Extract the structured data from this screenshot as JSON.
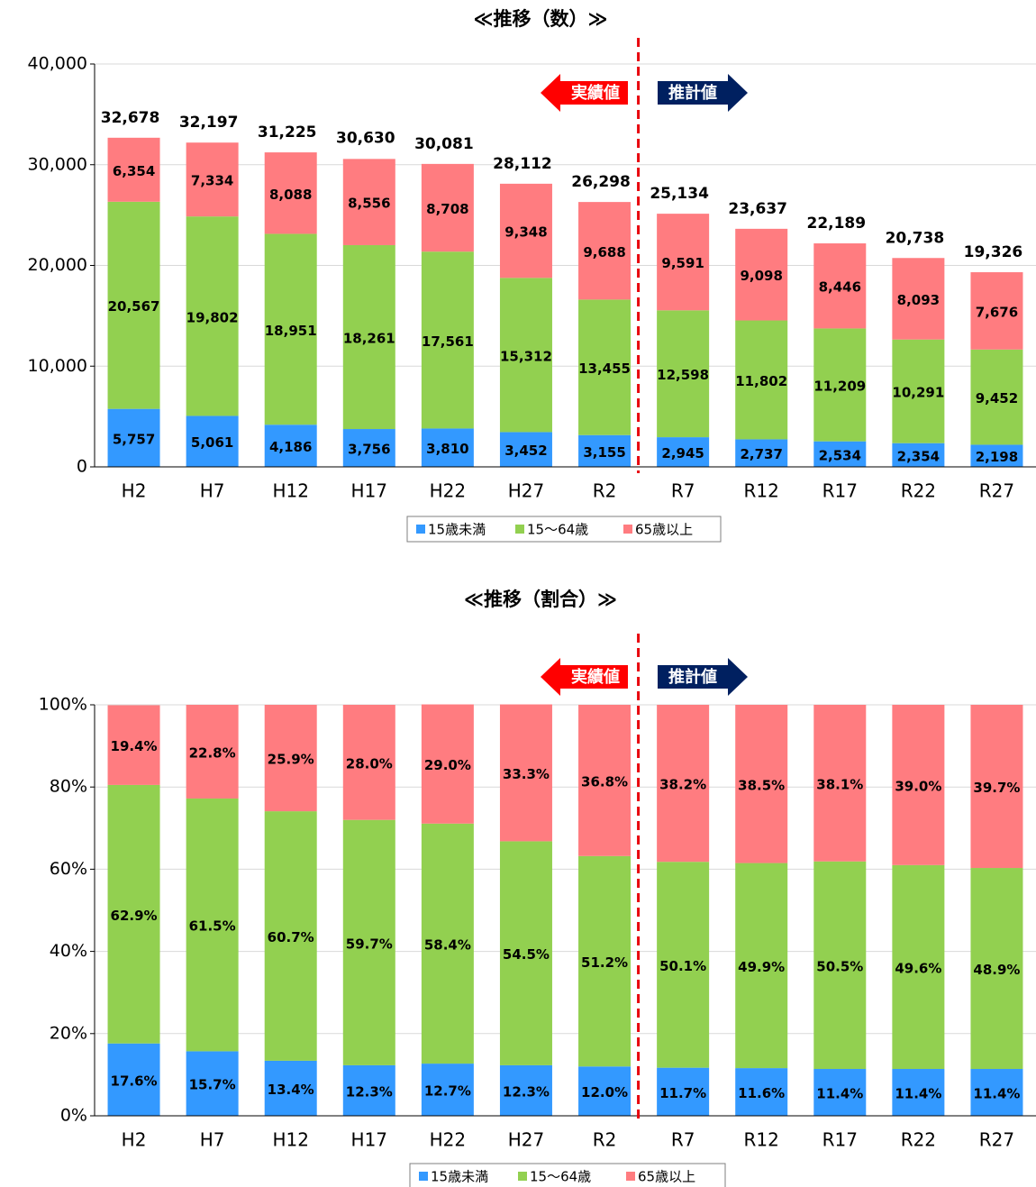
{
  "chart_data": [
    {
      "type": "bar",
      "stacked": true,
      "title": "≪推移（数）≫",
      "categories": [
        "H2",
        "H7",
        "H12",
        "H17",
        "H22",
        "H27",
        "R2",
        "R7",
        "R12",
        "R17",
        "R22",
        "R27"
      ],
      "series": [
        {
          "name": "15歳未満",
          "color": "#3399ff",
          "values": [
            5757,
            5061,
            4186,
            3756,
            3810,
            3452,
            3155,
            2945,
            2737,
            2534,
            2354,
            2198
          ],
          "value_labels": [
            "5,757",
            "5,061",
            "4,186",
            "3,756",
            "3,810",
            "3,452",
            "3,155",
            "2,945",
            "2,737",
            "2,534",
            "2,354",
            "2,198"
          ]
        },
        {
          "name": "15～64歳",
          "color": "#92d050",
          "values": [
            20567,
            19802,
            18951,
            18261,
            17561,
            15312,
            13455,
            12598,
            11802,
            11209,
            10291,
            9452
          ],
          "value_labels": [
            "20,567",
            "19,802",
            "18,951",
            "18,261",
            "17,561",
            "15,312",
            "13,455",
            "12,598",
            "11,802",
            "11,209",
            "10,291",
            "9,452"
          ]
        },
        {
          "name": "65歳以上",
          "color": "#ff7c80",
          "values": [
            6354,
            7334,
            8088,
            8556,
            8708,
            9348,
            9688,
            9591,
            9098,
            8446,
            8093,
            7676
          ],
          "value_labels": [
            "6,354",
            "7,334",
            "8,088",
            "8,556",
            "8,708",
            "9,348",
            "9,688",
            "9,591",
            "9,098",
            "8,446",
            "8,093",
            "7,676"
          ]
        }
      ],
      "totals": [
        32678,
        32197,
        31225,
        30630,
        30081,
        28112,
        26298,
        25134,
        23637,
        22189,
        20738,
        19326
      ],
      "total_labels": [
        "32,678",
        "32,197",
        "31,225",
        "30,630",
        "30,081",
        "28,112",
        "26,298",
        "25,134",
        "23,637",
        "22,189",
        "20,738",
        "19,326"
      ],
      "annotations": [
        "実績値",
        "推計値"
      ],
      "ylim": [
        0,
        40000
      ],
      "yticks": [
        0,
        {
          "value": 10000,
          "label": "10,000"
        },
        {
          "value": 20000,
          "label": "20,000"
        },
        {
          "value": 30000,
          "label": "30,000"
        },
        {
          "value": 40000,
          "label": "40,000"
        }
      ],
      "grid": true,
      "legend": "bottom"
    },
    {
      "type": "bar",
      "stacked": true,
      "title": "≪推移（割合）≫",
      "categories": [
        "H2",
        "H7",
        "H12",
        "H17",
        "H22",
        "H27",
        "R2",
        "R7",
        "R12",
        "R17",
        "R22",
        "R27"
      ],
      "series": [
        {
          "name": "15歳未満",
          "color": "#3399ff",
          "values": [
            17.6,
            15.7,
            13.4,
            12.3,
            12.7,
            12.3,
            12.0,
            11.7,
            11.6,
            11.4,
            11.4,
            11.4
          ],
          "value_labels": [
            "17.6%",
            "15.7%",
            "13.4%",
            "12.3%",
            "12.7%",
            "12.3%",
            "12.0%",
            "11.7%",
            "11.6%",
            "11.4%",
            "11.4%",
            "11.4%"
          ]
        },
        {
          "name": "15～64歳",
          "color": "#92d050",
          "values": [
            62.9,
            61.5,
            60.7,
            59.7,
            58.4,
            54.5,
            51.2,
            50.1,
            49.9,
            50.5,
            49.6,
            48.9
          ],
          "value_labels": [
            "62.9%",
            "61.5%",
            "60.7%",
            "59.7%",
            "58.4%",
            "54.5%",
            "51.2%",
            "50.1%",
            "49.9%",
            "50.5%",
            "49.6%",
            "48.9%"
          ]
        },
        {
          "name": "65歳以上",
          "color": "#ff7c80",
          "values": [
            19.4,
            22.8,
            25.9,
            28.0,
            29.0,
            33.3,
            36.8,
            38.2,
            38.5,
            38.1,
            39.0,
            39.7
          ],
          "value_labels": [
            "19.4%",
            "22.8%",
            "25.9%",
            "28.0%",
            "29.0%",
            "33.3%",
            "36.8%",
            "38.2%",
            "38.5%",
            "38.1%",
            "39.0%",
            "39.7%"
          ]
        }
      ],
      "annotations": [
        "実績値",
        "推計値"
      ],
      "ylim": [
        0,
        100
      ],
      "yticks": [
        {
          "value": 0,
          "label": "0%"
        },
        {
          "value": 20,
          "label": "20%"
        },
        {
          "value": 40,
          "label": "40%"
        },
        {
          "value": 60,
          "label": "60%"
        },
        {
          "value": 80,
          "label": "80%"
        },
        {
          "value": 100,
          "label": "100%"
        }
      ],
      "grid": true,
      "legend": "bottom"
    }
  ]
}
